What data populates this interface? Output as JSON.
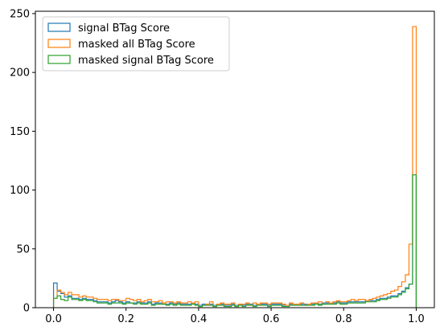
{
  "chart_data": {
    "type": "histogram-step",
    "title": "",
    "xlabel": "",
    "ylabel": "",
    "xlim": [
      -0.05,
      1.05
    ],
    "ylim": [
      0,
      252
    ],
    "grid": false,
    "legend_placement": "top-left",
    "bins": 100,
    "bin_range": [
      0,
      1
    ],
    "xticks": [
      0.0,
      0.2,
      0.4,
      0.6,
      0.8,
      1.0
    ],
    "xtick_labels": [
      "0.0",
      "0.2",
      "0.4",
      "0.6",
      "0.8",
      "1.0"
    ],
    "yticks": [
      0,
      50,
      100,
      150,
      200,
      250
    ],
    "ytick_labels": [
      "0",
      "50",
      "100",
      "150",
      "200",
      "250"
    ],
    "series": [
      {
        "name": "signal BTag Score",
        "color": "#1f77b4",
        "values": [
          21,
          14,
          12,
          9,
          10,
          8,
          8,
          7,
          8,
          7,
          7,
          6,
          5,
          5,
          5,
          4,
          5,
          6,
          5,
          4,
          5,
          4,
          4,
          5,
          4,
          4,
          5,
          3,
          4,
          4,
          3,
          3,
          4,
          3,
          4,
          3,
          3,
          3,
          4,
          3,
          2,
          3,
          3,
          3,
          2,
          3,
          3,
          2,
          2,
          3,
          2,
          3,
          2,
          3,
          3,
          2,
          3,
          3,
          3,
          2,
          3,
          3,
          3,
          2,
          2,
          3,
          3,
          3,
          3,
          3,
          3,
          3,
          4,
          3,
          4,
          4,
          4,
          4,
          5,
          4,
          4,
          5,
          5,
          5,
          5,
          5,
          6,
          6,
          6,
          7,
          8,
          8,
          9,
          10,
          10,
          12,
          14,
          17,
          20,
          113
        ]
      },
      {
        "name": "masked all BTag Score",
        "color": "#ff7f0e",
        "values": [
          8,
          15,
          13,
          11,
          13,
          11,
          11,
          9,
          10,
          9,
          9,
          8,
          7,
          7,
          7,
          6,
          7,
          7,
          6,
          6,
          8,
          7,
          6,
          7,
          5,
          6,
          7,
          5,
          5,
          6,
          4,
          5,
          5,
          4,
          5,
          4,
          4,
          5,
          4,
          5,
          1,
          2,
          3,
          5,
          1,
          3,
          4,
          3,
          3,
          4,
          1,
          3,
          3,
          4,
          2,
          4,
          3,
          4,
          4,
          3,
          4,
          4,
          4,
          3,
          2,
          4,
          3,
          3,
          4,
          2,
          3,
          4,
          4,
          5,
          3,
          5,
          4,
          5,
          6,
          5,
          5,
          6,
          7,
          6,
          7,
          7,
          6,
          7,
          8,
          9,
          10,
          11,
          12,
          14,
          15,
          18,
          22,
          28,
          54,
          239
        ]
      },
      {
        "name": "masked signal BTag Score",
        "color": "#2ca02c",
        "values": [
          8,
          10,
          7,
          6,
          9,
          7,
          7,
          6,
          7,
          6,
          6,
          5,
          4,
          4,
          4,
          3,
          4,
          4,
          4,
          3,
          4,
          4,
          3,
          4,
          3,
          3,
          4,
          2,
          3,
          3,
          3,
          2,
          3,
          2,
          3,
          2,
          2,
          2,
          3,
          2,
          1,
          2,
          2,
          2,
          1,
          2,
          2,
          1,
          1,
          2,
          1,
          2,
          1,
          2,
          2,
          1,
          2,
          2,
          2,
          1,
          2,
          2,
          2,
          1,
          1,
          2,
          2,
          2,
          2,
          2,
          2,
          2,
          3,
          2,
          3,
          3,
          3,
          3,
          4,
          3,
          3,
          4,
          4,
          4,
          4,
          4,
          5,
          5,
          5,
          6,
          7,
          7,
          8,
          9,
          9,
          11,
          13,
          16,
          20,
          113
        ]
      }
    ]
  }
}
